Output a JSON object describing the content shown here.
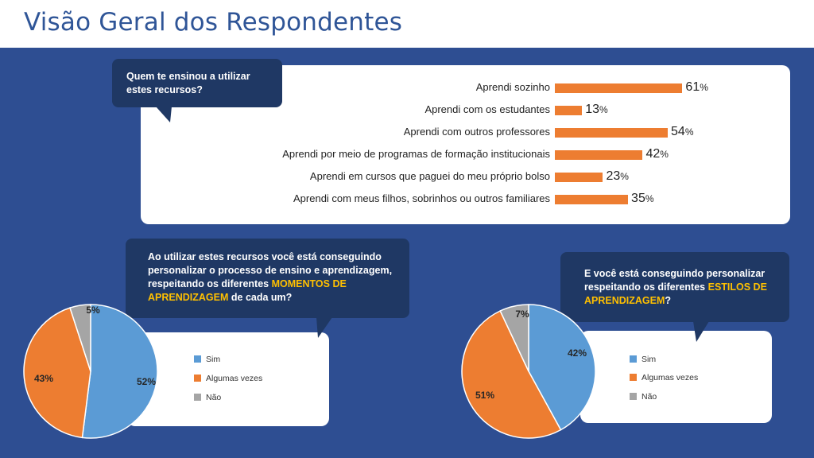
{
  "page": {
    "title": "Visão Geral dos Respondentes"
  },
  "q1": {
    "line1": "Quem te ensinou a utilizar",
    "line2": "estes recursos?"
  },
  "q2": {
    "line1": "Ao utilizar estes recursos você está conseguindo",
    "line2": "personalizar o processo de ensino e aprendizagem,",
    "line3_pre": "respeitando os diferentes ",
    "line3_hl": "MOMENTOS DE",
    "line4_hl": "APRENDIZAGEM",
    "line4_post": " de cada um?"
  },
  "q3": {
    "line1": "E você está conseguindo personalizar",
    "line2_pre": "respeitando os diferentes ",
    "line2_hl": "ESTILOS DE",
    "line3_hl": "APRENDIZAGEM",
    "line3_post": "?"
  },
  "legend": [
    "Sim",
    "Algumas vezes",
    "Não"
  ],
  "pct_symbol": "%",
  "colors": {
    "sim": "#5b9bd5",
    "algumas": "#ed7d31",
    "nao": "#a5a5a5",
    "bubble": "#1f3864",
    "background": "#2e4e92",
    "highlight": "#ffc000"
  },
  "chart_data": [
    {
      "type": "bar",
      "orientation": "horizontal",
      "categories": [
        "Aprendi sozinho",
        "Aprendi com os estudantes",
        "Aprendi com outros professores",
        "Aprendi por meio de programas de formação institucionais",
        "Aprendi em cursos que paguei do meu próprio bolso",
        "Aprendi com meus filhos, sobrinhos ou outros familiares"
      ],
      "values": [
        61,
        13,
        54,
        42,
        23,
        35
      ],
      "unit": "%"
    },
    {
      "type": "pie",
      "labels": [
        "Sim",
        "Algumas vezes",
        "Não"
      ],
      "values": [
        52,
        43,
        5
      ],
      "display": [
        "52%",
        "43%",
        "5%"
      ]
    },
    {
      "type": "pie",
      "labels": [
        "Sim",
        "Algumas vezes",
        "Não"
      ],
      "values": [
        42,
        51,
        7
      ],
      "display": [
        "42%",
        "51%",
        "7%"
      ]
    }
  ]
}
